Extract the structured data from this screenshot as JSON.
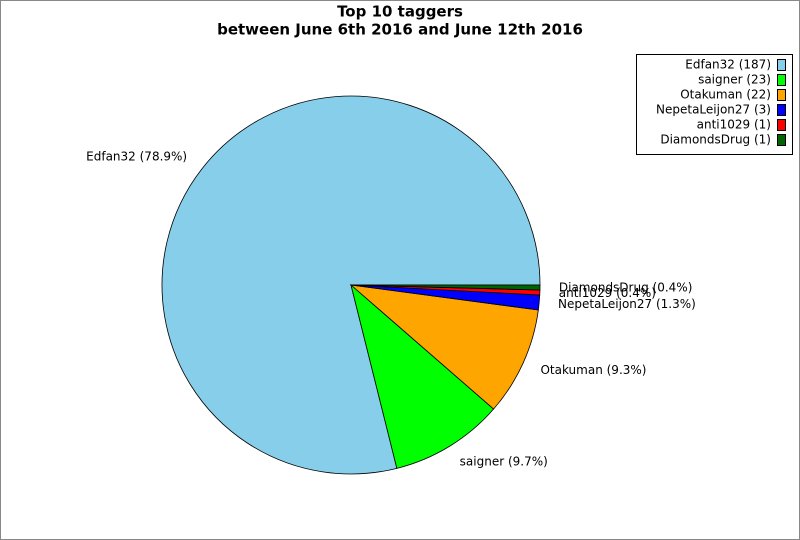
{
  "chart_data": {
    "type": "pie",
    "title": "Top 10 taggers",
    "subtitle": "between June 6th 2016 and June 12th 2016",
    "categories": [
      "Edfan32",
      "saigner",
      "Otakuman",
      "NepetaLeijon27",
      "anti1029",
      "DiamondsDrug"
    ],
    "values": [
      187,
      23,
      22,
      3,
      1,
      1
    ],
    "colors": [
      "#87ceeb",
      "#00ff00",
      "#ffa500",
      "#0000ff",
      "#ff0000",
      "#006400"
    ],
    "legend_labels": [
      "Edfan32 (187)",
      "saigner (23)",
      "Otakuman (22)",
      "NepetaLeijon27 (3)",
      "anti1029 (1)",
      "DiamondsDrug (1)"
    ],
    "slice_labels": [
      "Edfan32 (78.9%)",
      "saigner (9.7%)",
      "Otakuman (9.3%)",
      "NepetaLeijon27 (1.3%)",
      "anti1029 (0.4%)",
      "DiamondsDrug (0.4%)"
    ],
    "legend": "upper right"
  }
}
